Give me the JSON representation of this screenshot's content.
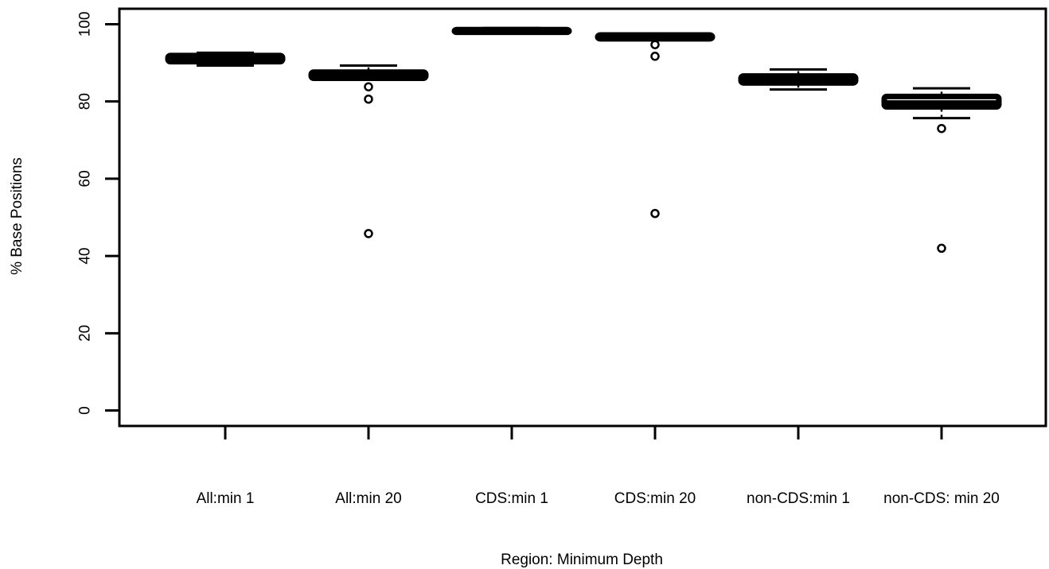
{
  "chart_data": {
    "type": "boxplot",
    "title": "",
    "xlabel": "Region: Minimum Depth",
    "ylabel": "% Base Positions",
    "ylim": [
      -4,
      104
    ],
    "yticks": [
      "0",
      "20",
      "40",
      "60",
      "80",
      "100"
    ],
    "categories": [
      "All:min 1",
      "All:min 20",
      "CDS:min 1",
      "CDS:min 20",
      "non-CDS:min 1",
      "non-CDS: min 20"
    ],
    "boxes": [
      {
        "whisker_low": 89.3,
        "q1": 90.3,
        "median": 91.0,
        "q3": 91.9,
        "whisker_high": 92.6,
        "outliers": []
      },
      {
        "whisker_low": 85.7,
        "q1": 86.0,
        "median": 86.8,
        "q3": 87.6,
        "whisker_high": 89.3,
        "outliers": [
          83.8,
          80.6,
          45.8
        ]
      },
      {
        "whisker_low": 97.7,
        "q1": 97.9,
        "median": 98.2,
        "q3": 98.6,
        "whisker_high": 99.0,
        "outliers": []
      },
      {
        "whisker_low": 96.0,
        "q1": 96.2,
        "median": 96.6,
        "q3": 97.2,
        "whisker_high": 97.6,
        "outliers": [
          94.7,
          91.7,
          51.0
        ]
      },
      {
        "whisker_low": 83.1,
        "q1": 84.8,
        "median": 85.7,
        "q3": 86.6,
        "whisker_high": 88.3,
        "outliers": []
      },
      {
        "whisker_low": 75.7,
        "q1": 78.6,
        "median": 79.6,
        "q3": 81.3,
        "whisker_high": 83.4,
        "outliers": [
          73.0,
          42.0
        ]
      }
    ],
    "colors": {
      "stroke": "#000000",
      "fill": "#ffffff"
    }
  }
}
